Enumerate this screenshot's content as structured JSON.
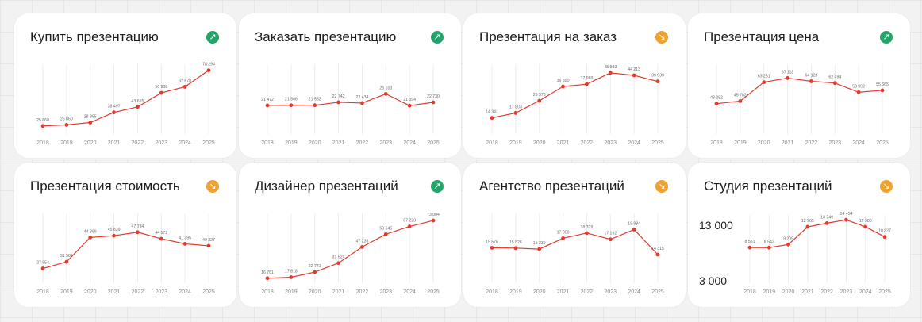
{
  "colors": {
    "line": "#e23a2e",
    "up": "#22a46a",
    "down": "#f0a22e",
    "grid": "#ececec",
    "label": "#8a8a8a"
  },
  "chart_data": [
    {
      "type": "line",
      "title": "Купить презентацию",
      "trend": "up",
      "trend_icon": "arrow-up-right-icon",
      "x": [
        "2018",
        "2019",
        "2020",
        "2021",
        "2022",
        "2023",
        "2024",
        "2025"
      ],
      "values": [
        25668,
        26660,
        28865,
        38497,
        43655,
        56938,
        62678,
        78294
      ],
      "labels": [
        "25 668",
        "26 660",
        "28 865",
        "38 497",
        "43 655",
        "56 938",
        "62 678",
        "78 294"
      ],
      "ylim": [
        18000,
        84000
      ],
      "grid": true
    },
    {
      "type": "line",
      "title": "Заказать презентацию",
      "trend": "up",
      "trend_icon": "arrow-up-right-icon",
      "x": [
        "2018",
        "2019",
        "2020",
        "2021",
        "2022",
        "2023",
        "2024",
        "2025"
      ],
      "values": [
        21472,
        21546,
        21552,
        22742,
        22434,
        26103,
        21394,
        22730
      ],
      "labels": [
        "21 472",
        "21 546",
        "21 552",
        "22 742",
        "22 434",
        "26 103",
        "21 394",
        "22 730"
      ],
      "ylim": [
        10000,
        38000
      ],
      "grid": true
    },
    {
      "type": "line",
      "title": "Презентация на заказ",
      "trend": "down",
      "trend_icon": "arrow-down-right-icon",
      "x": [
        "2018",
        "2019",
        "2020",
        "2021",
        "2022",
        "2023",
        "2024",
        "2025"
      ],
      "values": [
        14341,
        17803,
        26373,
        36390,
        37989,
        45983,
        44213,
        39939
      ],
      "labels": [
        "14 341",
        "17 803",
        "26 373",
        "36 390",
        "37 989",
        "45 983",
        "44 213",
        "39 939"
      ],
      "ylim": [
        3000,
        52000
      ],
      "grid": true
    },
    {
      "type": "line",
      "title": "Презентация цена",
      "trend": "up",
      "trend_icon": "arrow-up-right-icon",
      "x": [
        "2018",
        "2019",
        "2020",
        "2021",
        "2022",
        "2023",
        "2024",
        "2025"
      ],
      "values": [
        43282,
        45702,
        63231,
        67118,
        64123,
        62494,
        53952,
        55665
      ],
      "labels": [
        "43 282",
        "45 702",
        "63 231",
        "67 118",
        "64 123",
        "62 494",
        "53 952",
        "55 665"
      ],
      "ylim": [
        15000,
        80000
      ],
      "grid": true
    },
    {
      "type": "line",
      "title": "Презентация стоимость",
      "trend": "down",
      "trend_icon": "arrow-down-right-icon",
      "x": [
        "2018",
        "2019",
        "2020",
        "2021",
        "2022",
        "2023",
        "2024",
        "2025"
      ],
      "values": [
        27954,
        31586,
        44899,
        45839,
        47734,
        44172,
        41395,
        40327
      ],
      "labels": [
        "27 954",
        "31 586",
        "44 899",
        "45 839",
        "47 734",
        "44 172",
        "41 395",
        "40 327"
      ],
      "ylim": [
        20000,
        58000
      ],
      "grid": true
    },
    {
      "type": "line",
      "title": "Дизайнер презентаций",
      "trend": "up",
      "trend_icon": "arrow-up-right-icon",
      "x": [
        "2018",
        "2019",
        "2020",
        "2021",
        "2022",
        "2023",
        "2024",
        "2025"
      ],
      "values": [
        16781,
        17818,
        22741,
        31524,
        47235,
        59645,
        67223,
        73004
      ],
      "labels": [
        "16 781",
        "17 818",
        "22 741",
        "31 524",
        "47 235",
        "59 645",
        "67 223",
        "73 004"
      ],
      "ylim": [
        12000,
        80000
      ],
      "grid": true
    },
    {
      "type": "line",
      "title": "Агентство презентаций",
      "trend": "down",
      "trend_icon": "arrow-down-right-icon",
      "x": [
        "2018",
        "2019",
        "2020",
        "2021",
        "2022",
        "2023",
        "2024",
        "2025"
      ],
      "values": [
        15576,
        15526,
        15339,
        17359,
        18329,
        17162,
        18984,
        14315
      ],
      "labels": [
        "15 576",
        "15 526",
        "15 339",
        "17 359",
        "18 329",
        "17 162",
        "18 984",
        "14 315"
      ],
      "ylim": [
        9000,
        22000
      ],
      "grid": true
    },
    {
      "type": "line",
      "title": "Студия презентаций",
      "trend": "down",
      "trend_icon": "arrow-down-right-icon",
      "x": [
        "2018",
        "2019",
        "2020",
        "2021",
        "2022",
        "2023",
        "2024",
        "2025"
      ],
      "values": [
        8561,
        8543,
        9209,
        12965,
        13749,
        14454,
        12980,
        10827
      ],
      "labels": [
        "8 561",
        "8 543",
        "9 209",
        "12 965",
        "13 749",
        "14 454",
        "12 980",
        "10 827"
      ],
      "yticks": [
        "13 000",
        "3 000"
      ],
      "ylim": [
        1000,
        15500
      ],
      "grid": true
    }
  ]
}
